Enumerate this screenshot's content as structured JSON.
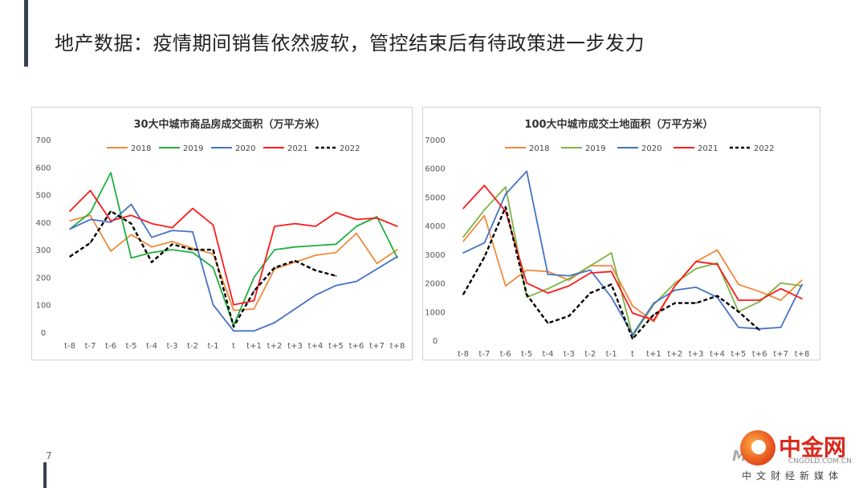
{
  "slide": {
    "title": "地产数据：疫情期间销售依然疲软，管控结束后有待政策进一步发力",
    "page_number": "7"
  },
  "logo": {
    "name": "中金网",
    "url": "CNGOLD.COM.CN",
    "subtitle": "中文财经新媒体",
    "mark": "M"
  },
  "colors": {
    "2018": "#f08a3c",
    "2019_left": "#1eb040",
    "2019_right": "#7cb342",
    "2020": "#4472c4",
    "2021": "#ff1a1a",
    "2022": "#000000",
    "accent_bar": "#3a3f55"
  },
  "chart_data": [
    {
      "type": "line",
      "title": "30大中城市商品房成交面积（万平方米）",
      "categories": [
        "t-8",
        "t-7",
        "t-6",
        "t-5",
        "t-4",
        "t-3",
        "t-2",
        "t-1",
        "t",
        "t+1",
        "t+2",
        "t+3",
        "t+4",
        "t+5",
        "t+6",
        "t+7",
        "t+8"
      ],
      "ylim": [
        0,
        700
      ],
      "yticks": [
        0,
        100,
        200,
        300,
        400,
        500,
        600,
        700
      ],
      "grid": false,
      "legend": "top",
      "series": [
        {
          "name": "2018",
          "values": [
            405,
            425,
            295,
            355,
            310,
            330,
            305,
            285,
            80,
            85,
            230,
            255,
            280,
            290,
            360,
            250,
            300
          ]
        },
        {
          "name": "2019",
          "values": [
            375,
            435,
            580,
            270,
            290,
            300,
            290,
            235,
            25,
            200,
            300,
            310,
            315,
            320,
            385,
            420,
            270
          ]
        },
        {
          "name": "2020",
          "values": [
            375,
            410,
            400,
            465,
            345,
            370,
            365,
            100,
            5,
            5,
            35,
            85,
            135,
            170,
            185,
            230,
            275
          ]
        },
        {
          "name": "2021",
          "values": [
            440,
            515,
            405,
            425,
            395,
            380,
            450,
            390,
            100,
            115,
            385,
            395,
            385,
            435,
            410,
            415,
            385
          ]
        },
        {
          "name": "2022",
          "values": [
            275,
            325,
            440,
            395,
            255,
            320,
            300,
            300,
            20,
            150,
            235,
            260,
            225,
            205,
            null,
            null,
            null
          ]
        }
      ]
    },
    {
      "type": "line",
      "title": "100大中城市成交土地面积（万平方米）",
      "categories": [
        "t-8",
        "t-7",
        "t-6",
        "t-5",
        "t-4",
        "t-3",
        "t-2",
        "t-1",
        "t",
        "t+1",
        "t+2",
        "t+3",
        "t+4",
        "t+5",
        "t+6",
        "t+7",
        "t+8"
      ],
      "ylim": [
        0,
        7000
      ],
      "yticks": [
        0,
        1000,
        2000,
        3000,
        4000,
        5000,
        6000,
        7000
      ],
      "grid": false,
      "legend": "top",
      "series": [
        {
          "name": "2018",
          "values": [
            3450,
            4350,
            1900,
            2450,
            2400,
            2100,
            2600,
            2600,
            1200,
            650,
            1900,
            2750,
            3150,
            1950,
            1700,
            1400,
            2100
          ]
        },
        {
          "name": "2019",
          "values": [
            3600,
            4550,
            5350,
            1500,
            1800,
            2150,
            2600,
            3050,
            150,
            1250,
            2000,
            2500,
            2700,
            1000,
            1350,
            2000,
            1900
          ]
        },
        {
          "name": "2020",
          "values": [
            3050,
            3400,
            5100,
            5900,
            2300,
            2250,
            2450,
            1500,
            200,
            1300,
            1750,
            1850,
            1500,
            450,
            400,
            450,
            1950
          ]
        },
        {
          "name": "2021",
          "values": [
            4600,
            5400,
            4500,
            2000,
            1650,
            1900,
            2350,
            2400,
            950,
            700,
            1900,
            2750,
            2650,
            1400,
            1400,
            1800,
            1450
          ]
        },
        {
          "name": "2022",
          "values": [
            1600,
            2900,
            4650,
            1600,
            600,
            850,
            1650,
            1950,
            50,
            900,
            1300,
            1300,
            1550,
            1000,
            350,
            null,
            null
          ]
        }
      ]
    }
  ]
}
